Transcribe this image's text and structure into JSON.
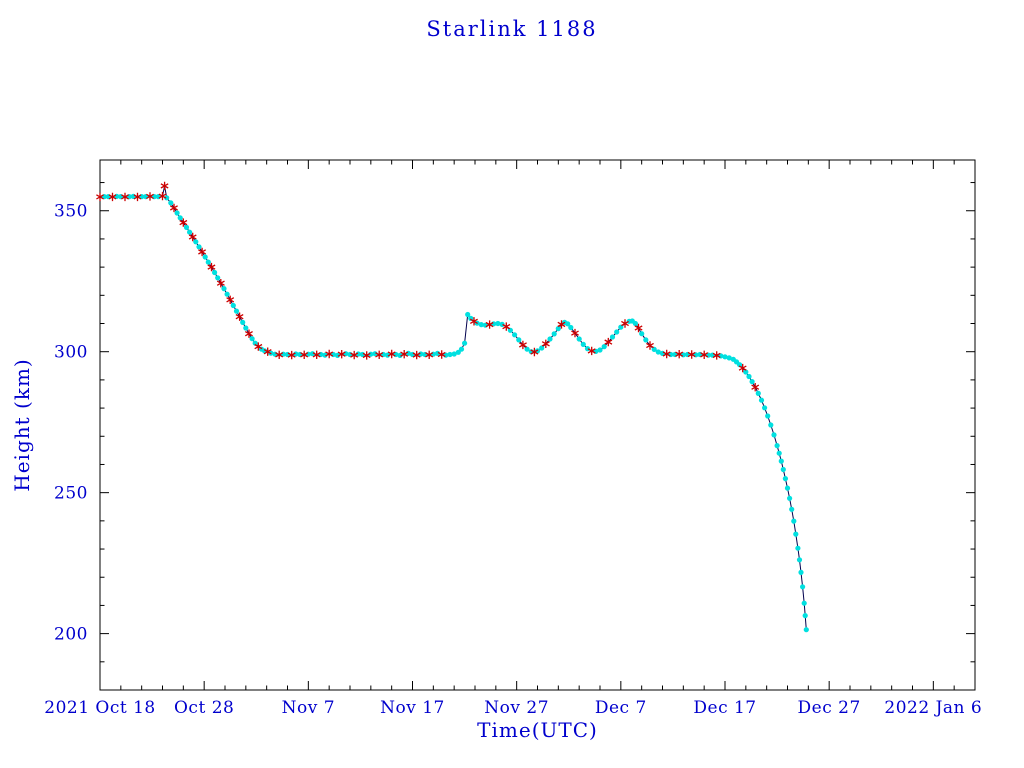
{
  "chart_data": {
    "type": "line",
    "title": "Starlink 1188",
    "xlabel": "Time(UTC)",
    "ylabel": "Height (km)",
    "x_unit": "days since first x tick (2021 Oct 18)",
    "xlim": [
      0,
      84
    ],
    "ylim": [
      180,
      368
    ],
    "grid": false,
    "legend": "none",
    "x_ticks": [
      {
        "day": 0,
        "label": "2021 Oct 18"
      },
      {
        "day": 10,
        "label": "Oct 28"
      },
      {
        "day": 20,
        "label": "Nov 7"
      },
      {
        "day": 30,
        "label": "Nov 17"
      },
      {
        "day": 40,
        "label": "Nov 27"
      },
      {
        "day": 50,
        "label": "Dec 7"
      },
      {
        "day": 60,
        "label": "Dec 17"
      },
      {
        "day": 70,
        "label": "Dec 27"
      },
      {
        "day": 80,
        "label": "2022 Jan 6"
      }
    ],
    "y_ticks": [
      200,
      250,
      300,
      350
    ],
    "x_minor_step": 2,
    "y_minor_step": 10,
    "colors": {
      "text": "#0000cd",
      "axis": "#000000",
      "line": "#00004d",
      "marker_dot": "#00e0e0",
      "marker_asterisk": "#cc0000"
    },
    "point_format": [
      "day_since_2021_oct_18",
      "height_km",
      "marker (0=cyan dot, 1=red asterisk)"
    ],
    "points": [
      [
        0,
        354.9,
        1
      ],
      [
        0.4,
        355,
        0
      ],
      [
        0.8,
        355,
        0
      ],
      [
        1.2,
        354.9,
        1
      ],
      [
        1.6,
        355.1,
        0
      ],
      [
        2,
        355,
        0
      ],
      [
        2.4,
        354.9,
        1
      ],
      [
        2.8,
        355,
        0
      ],
      [
        3.2,
        355.1,
        0
      ],
      [
        3.6,
        354.9,
        1
      ],
      [
        4,
        355,
        0
      ],
      [
        4.4,
        355,
        0
      ],
      [
        4.8,
        355.1,
        1
      ],
      [
        5.2,
        355,
        0
      ],
      [
        5.6,
        355,
        0
      ],
      [
        6,
        355.2,
        1
      ],
      [
        6.2,
        358.8,
        1
      ],
      [
        6.4,
        354.6,
        0
      ],
      [
        6.8,
        352.8,
        0
      ],
      [
        7.1,
        351,
        1
      ],
      [
        7.4,
        349.2,
        0
      ],
      [
        7.7,
        347.5,
        0
      ],
      [
        8,
        345.8,
        1
      ],
      [
        8.3,
        344.1,
        0
      ],
      [
        8.6,
        342.4,
        0
      ],
      [
        8.9,
        340.7,
        1
      ],
      [
        9.2,
        339,
        0
      ],
      [
        9.5,
        337.2,
        0
      ],
      [
        9.8,
        335.4,
        1
      ],
      [
        10.1,
        333.6,
        0
      ],
      [
        10.4,
        331.8,
        0
      ],
      [
        10.7,
        330,
        1
      ],
      [
        11,
        328.1,
        0
      ],
      [
        11.3,
        326.2,
        0
      ],
      [
        11.6,
        324.3,
        1
      ],
      [
        11.9,
        322.4,
        0
      ],
      [
        12.2,
        320.4,
        0
      ],
      [
        12.5,
        318.4,
        1
      ],
      [
        12.8,
        316.4,
        0
      ],
      [
        13.1,
        314.4,
        0
      ],
      [
        13.4,
        312.4,
        1
      ],
      [
        13.7,
        310.4,
        0
      ],
      [
        14,
        308.4,
        0
      ],
      [
        14.3,
        306.4,
        1
      ],
      [
        14.6,
        304.6,
        0
      ],
      [
        14.9,
        303,
        0
      ],
      [
        15.2,
        301.8,
        1
      ],
      [
        15.5,
        300.9,
        0
      ],
      [
        15.8,
        300.3,
        0
      ],
      [
        16.1,
        300,
        1
      ],
      [
        16.4,
        299.5,
        0
      ],
      [
        16.8,
        299.1,
        0
      ],
      [
        17.2,
        298.9,
        1
      ],
      [
        17.6,
        299.1,
        0
      ],
      [
        18,
        299,
        0
      ],
      [
        18.4,
        298.8,
        1
      ],
      [
        18.8,
        299.2,
        0
      ],
      [
        19.2,
        299,
        0
      ],
      [
        19.6,
        298.9,
        1
      ],
      [
        20,
        299.1,
        0
      ],
      [
        20.4,
        299.3,
        0
      ],
      [
        20.8,
        298.9,
        1
      ],
      [
        21.2,
        299,
        0
      ],
      [
        21.6,
        298.8,
        0
      ],
      [
        22,
        299.2,
        1
      ],
      [
        22.4,
        299,
        0
      ],
      [
        22.8,
        298.7,
        0
      ],
      [
        23.2,
        299.1,
        1
      ],
      [
        23.6,
        299.3,
        0
      ],
      [
        24,
        299,
        0
      ],
      [
        24.4,
        298.8,
        1
      ],
      [
        24.8,
        299.2,
        0
      ],
      [
        25.2,
        299,
        0
      ],
      [
        25.6,
        298.7,
        1
      ],
      [
        26,
        299.1,
        0
      ],
      [
        26.4,
        299.3,
        0
      ],
      [
        26.8,
        298.9,
        1
      ],
      [
        27.2,
        299,
        0
      ],
      [
        27.6,
        298.8,
        0
      ],
      [
        28,
        299.2,
        1
      ],
      [
        28.4,
        299,
        0
      ],
      [
        28.8,
        298.7,
        0
      ],
      [
        29.2,
        299.1,
        1
      ],
      [
        29.6,
        299.4,
        0
      ],
      [
        30,
        299,
        0
      ],
      [
        30.4,
        298.8,
        1
      ],
      [
        30.8,
        299.2,
        0
      ],
      [
        31.2,
        299,
        0
      ],
      [
        31.6,
        298.9,
        1
      ],
      [
        32,
        299.1,
        0
      ],
      [
        32.4,
        299.4,
        0
      ],
      [
        32.8,
        299,
        1
      ],
      [
        33.2,
        298.8,
        0
      ],
      [
        33.6,
        299,
        0
      ],
      [
        34,
        299.2,
        0
      ],
      [
        34.4,
        299.8,
        0
      ],
      [
        34.7,
        300.9,
        0
      ],
      [
        35,
        303,
        0
      ],
      [
        35.3,
        313.2,
        0
      ],
      [
        35.6,
        311.8,
        0
      ],
      [
        35.9,
        310.8,
        1
      ],
      [
        36.2,
        310.1,
        0
      ],
      [
        36.6,
        309.6,
        0
      ],
      [
        37,
        309.4,
        0
      ],
      [
        37.4,
        309.6,
        1
      ],
      [
        37.8,
        309.9,
        0
      ],
      [
        38.2,
        310,
        0
      ],
      [
        38.6,
        309.7,
        0
      ],
      [
        39,
        308.9,
        1
      ],
      [
        39.4,
        307.6,
        0
      ],
      [
        39.8,
        306,
        0
      ],
      [
        40.2,
        304.2,
        0
      ],
      [
        40.6,
        302.4,
        1
      ],
      [
        41,
        300.9,
        0
      ],
      [
        41.4,
        300,
        0
      ],
      [
        41.7,
        299.9,
        1
      ],
      [
        42,
        300.3,
        0
      ],
      [
        42.4,
        301.3,
        0
      ],
      [
        42.8,
        302.8,
        1
      ],
      [
        43.2,
        304.5,
        0
      ],
      [
        43.6,
        306.3,
        0
      ],
      [
        44,
        308.2,
        0
      ],
      [
        44.3,
        309.7,
        1
      ],
      [
        44.6,
        310.4,
        0
      ],
      [
        44.9,
        309.9,
        0
      ],
      [
        45.2,
        308.6,
        0
      ],
      [
        45.6,
        306.6,
        1
      ],
      [
        46,
        304.5,
        0
      ],
      [
        46.4,
        302.6,
        0
      ],
      [
        46.8,
        301.1,
        0
      ],
      [
        47.2,
        300.3,
        1
      ],
      [
        47.6,
        300.1,
        0
      ],
      [
        48,
        300.6,
        0
      ],
      [
        48.4,
        301.8,
        0
      ],
      [
        48.8,
        303.4,
        1
      ],
      [
        49.2,
        305.2,
        0
      ],
      [
        49.6,
        307,
        0
      ],
      [
        50,
        308.7,
        0
      ],
      [
        50.4,
        310,
        1
      ],
      [
        50.8,
        310.8,
        0
      ],
      [
        51.1,
        310.9,
        0
      ],
      [
        51.4,
        310,
        0
      ],
      [
        51.7,
        308.4,
        1
      ],
      [
        52,
        306.4,
        0
      ],
      [
        52.4,
        304.2,
        0
      ],
      [
        52.8,
        302.2,
        1
      ],
      [
        53.2,
        300.8,
        0
      ],
      [
        53.6,
        299.9,
        0
      ],
      [
        54,
        299.4,
        0
      ],
      [
        54.4,
        299.2,
        1
      ],
      [
        54.8,
        299,
        0
      ],
      [
        55.2,
        299,
        0
      ],
      [
        55.6,
        299.1,
        1
      ],
      [
        56,
        298.9,
        0
      ],
      [
        56.4,
        299,
        0
      ],
      [
        56.8,
        299,
        1
      ],
      [
        57.2,
        298.9,
        0
      ],
      [
        57.6,
        299,
        0
      ],
      [
        58,
        298.9,
        1
      ],
      [
        58.4,
        298.8,
        0
      ],
      [
        58.8,
        298.8,
        0
      ],
      [
        59.2,
        298.7,
        1
      ],
      [
        59.6,
        298.5,
        0
      ],
      [
        60,
        298.2,
        0
      ],
      [
        60.4,
        297.8,
        0
      ],
      [
        60.8,
        297.3,
        0
      ],
      [
        61.1,
        296.4,
        0
      ],
      [
        61.4,
        295.4,
        0
      ],
      [
        61.7,
        294.2,
        1
      ],
      [
        62,
        292.8,
        0
      ],
      [
        62.3,
        291.2,
        0
      ],
      [
        62.6,
        289.4,
        0
      ],
      [
        62.9,
        287.4,
        1
      ],
      [
        63.2,
        285.2,
        0
      ],
      [
        63.5,
        282.8,
        0
      ],
      [
        63.8,
        280.1,
        0
      ],
      [
        64.1,
        277.2,
        0
      ],
      [
        64.4,
        274,
        0
      ],
      [
        64.7,
        270.5,
        0
      ],
      [
        65,
        266.7,
        0
      ],
      [
        65.2,
        264,
        0
      ],
      [
        65.4,
        261.2,
        0
      ],
      [
        65.6,
        258.2,
        0
      ],
      [
        65.8,
        255,
        0
      ],
      [
        66,
        251.6,
        0
      ],
      [
        66.2,
        248,
        0
      ],
      [
        66.4,
        244.1,
        0
      ],
      [
        66.6,
        239.9,
        0
      ],
      [
        66.8,
        235.3,
        0
      ],
      [
        67,
        230.3,
        0
      ],
      [
        67.15,
        226.2,
        0
      ],
      [
        67.3,
        221.7,
        0
      ],
      [
        67.45,
        216.6,
        0
      ],
      [
        67.6,
        210.8,
        0
      ],
      [
        67.7,
        206.4,
        0
      ],
      [
        67.8,
        201.4,
        0
      ]
    ]
  }
}
